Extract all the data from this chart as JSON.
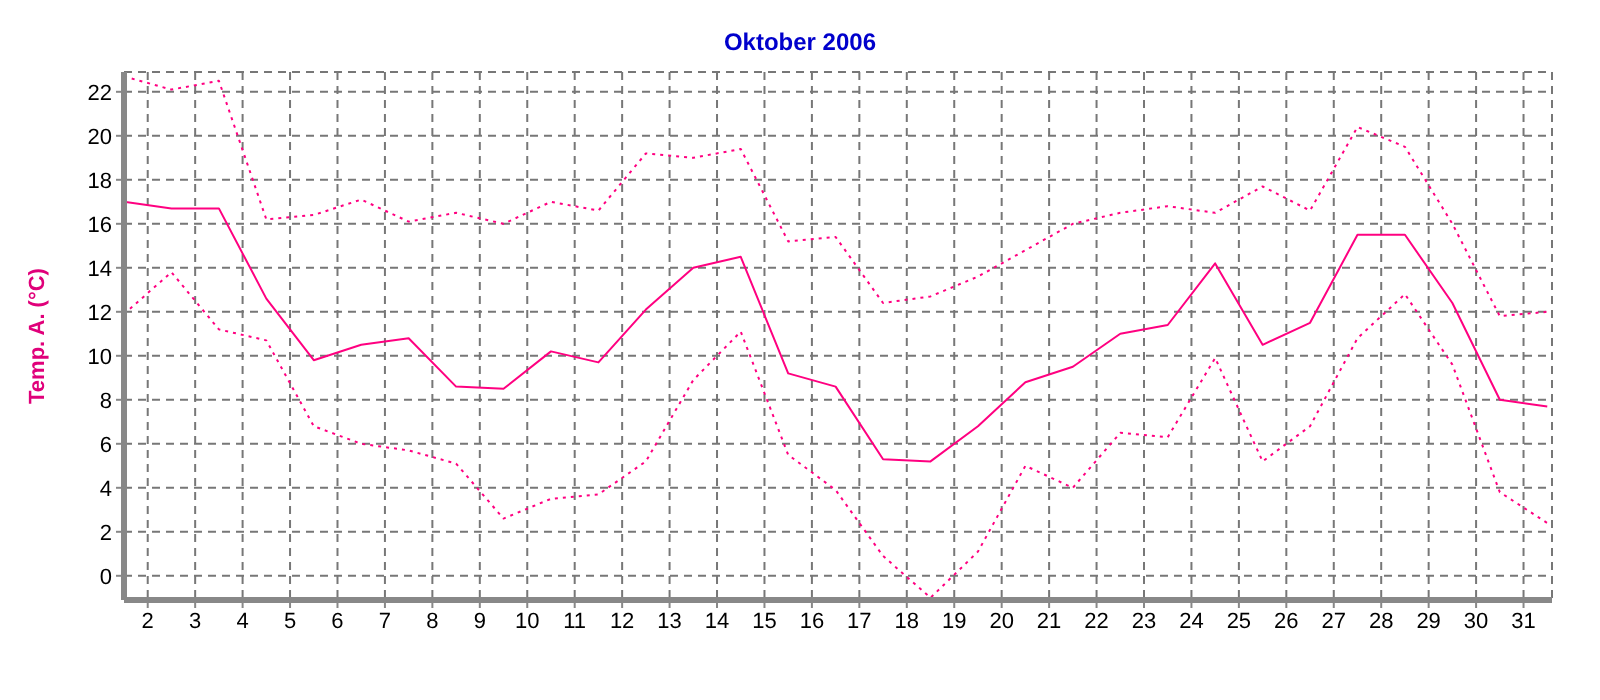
{
  "chart_data": {
    "type": "line",
    "title": "Oktober 2006",
    "ylabel": "Temp. A. (°C)",
    "x": [
      1.5,
      2.5,
      3.5,
      4.5,
      5.5,
      6.5,
      7.5,
      8.5,
      9.5,
      10.5,
      11.5,
      12.5,
      13.5,
      14.5,
      15.5,
      16.5,
      17.5,
      18.5,
      19.5,
      20.5,
      21.5,
      22.5,
      23.5,
      24.5,
      25.5,
      26.5,
      27.5,
      28.5,
      29.5,
      30.5,
      31.5
    ],
    "series": [
      {
        "color": "#ff0080",
        "line_style": "dotted",
        "values": [
          22.7,
          22.1,
          22.5,
          16.2,
          16.4,
          17.1,
          16.1,
          16.5,
          16.0,
          17.0,
          16.6,
          19.2,
          19.0,
          19.4,
          15.2,
          15.4,
          12.4,
          12.7,
          13.6,
          14.8,
          16.0,
          16.5,
          16.8,
          16.5,
          17.7,
          16.6,
          20.4,
          19.5,
          16.0,
          11.8,
          12.0
        ]
      },
      {
        "color": "#ff0080",
        "line_style": "solid",
        "values": [
          17.0,
          16.7,
          16.7,
          12.6,
          9.8,
          10.5,
          10.8,
          8.6,
          8.5,
          10.2,
          9.7,
          12.1,
          14.0,
          14.5,
          9.2,
          8.6,
          5.3,
          5.2,
          6.8,
          8.8,
          9.5,
          11.0,
          11.4,
          14.2,
          10.5,
          11.5,
          15.5,
          15.5,
          12.4,
          8.0,
          7.7
        ]
      },
      {
        "color": "#ff0080",
        "line_style": "dotted",
        "values": [
          11.9,
          13.8,
          11.2,
          10.7,
          6.8,
          6.0,
          5.7,
          5.1,
          2.6,
          3.5,
          3.7,
          5.2,
          8.9,
          11.1,
          5.5,
          3.9,
          0.9,
          -1.0,
          1.1,
          5.0,
          4.0,
          6.5,
          6.3,
          9.9,
          5.2,
          6.8,
          10.8,
          12.8,
          9.6,
          3.8,
          2.4
        ]
      }
    ],
    "xlim": [
      1.5,
      31.6
    ],
    "xticks": [
      2,
      3,
      4,
      5,
      6,
      7,
      8,
      9,
      10,
      11,
      12,
      13,
      14,
      15,
      16,
      17,
      18,
      19,
      20,
      21,
      22,
      23,
      24,
      25,
      26,
      27,
      28,
      29,
      30,
      31
    ],
    "ylim": [
      -1.1,
      22.9
    ],
    "yticks": [
      0,
      2,
      4,
      6,
      8,
      10,
      12,
      14,
      16,
      18,
      20,
      22
    ],
    "grid": true
  }
}
